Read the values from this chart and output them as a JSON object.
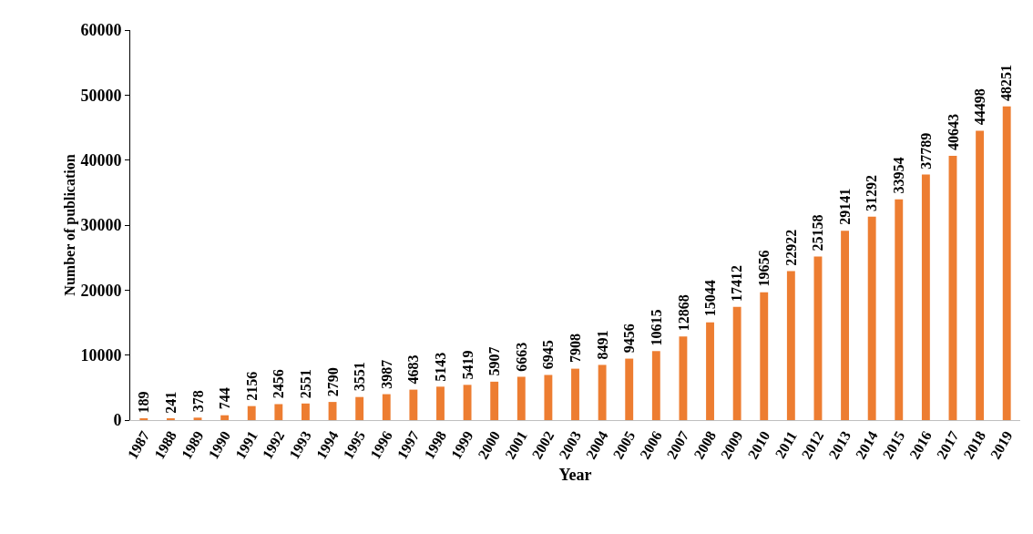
{
  "chart_data": {
    "type": "bar",
    "xlabel": "Year",
    "ylabel": "Number of publication",
    "categories": [
      "1987",
      "1988",
      "1989",
      "1990",
      "1991",
      "1992",
      "1993",
      "1994",
      "1995",
      "1996",
      "1997",
      "1998",
      "1999",
      "2000",
      "2001",
      "2002",
      "2003",
      "2004",
      "2005",
      "2006",
      "2007",
      "2008",
      "2009",
      "2010",
      "2011",
      "2012",
      "2013",
      "2014",
      "2015",
      "2016",
      "2017",
      "2018",
      "2019"
    ],
    "values": [
      189,
      241,
      378,
      744,
      2156,
      2456,
      2551,
      2790,
      3551,
      3987,
      4683,
      5143,
      5419,
      5907,
      6663,
      6945,
      7908,
      8491,
      9456,
      10615,
      12868,
      15044,
      17412,
      19656,
      22922,
      25158,
      29141,
      31292,
      33954,
      37789,
      40643,
      44498,
      48251
    ],
    "color": "#ed7d31",
    "ylim": [
      0,
      60000
    ],
    "yticks": [
      0,
      10000,
      20000,
      30000,
      40000,
      50000,
      60000
    ],
    "grid": false,
    "legend": false,
    "data_labels": true
  }
}
